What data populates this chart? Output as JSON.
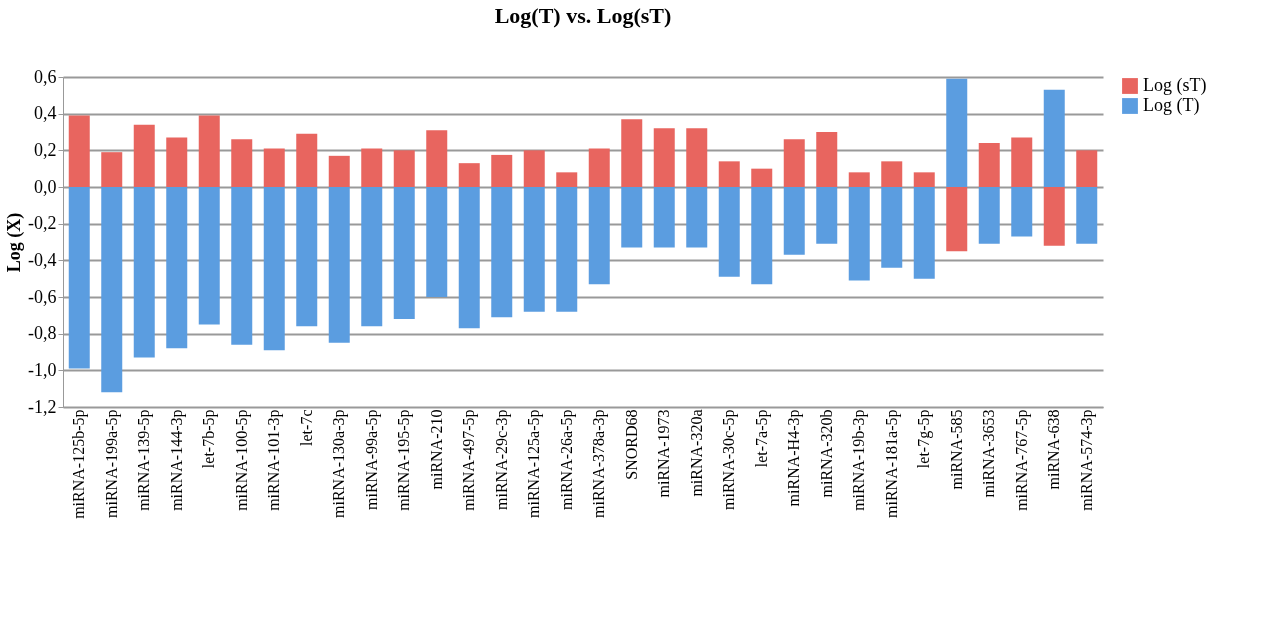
{
  "chart_data": {
    "type": "bar",
    "title": "Log(T) vs. Log(sT)",
    "ylabel": "Log (X)",
    "categories": [
      "miRNA-125b-5p",
      "miRNA-199a-5p",
      "miRNA-139-5p",
      "miRNA-144-3p",
      "let-7b-5p",
      "miRNA-100-5p",
      "miRNA-101-3p",
      "let-7c",
      "miRNA-130a-3p",
      "miRNA-99a-5p",
      "miRNA-195-5p",
      "miRNA-210",
      "miRNA-497-5p",
      "miRNA-29c-3p",
      "miRNA-125a-5p",
      "miRNA-26a-5p",
      "miRNA-378a-3p",
      "SNORD68",
      "miRNA-1973",
      "miRNA-320a",
      "miRNA-30c-5p",
      "let-7a-5p",
      "miRNA-H4-3p",
      "miRNA-320b",
      "miRNA-19b-3p",
      "miRNA-181a-5p",
      "let-7g-5p",
      "miRNA-585",
      "miRNA-3653",
      "miRNA-767-5p",
      "miRNA-638",
      "miRNA-574-3p"
    ],
    "series": [
      {
        "name": "Log (sT)",
        "color": "#e8655f",
        "values": [
          0.39,
          0.19,
          0.34,
          0.27,
          0.39,
          0.26,
          0.21,
          0.29,
          0.17,
          0.21,
          0.2,
          0.31,
          0.13,
          0.175,
          0.2,
          0.08,
          0.21,
          0.37,
          0.32,
          0.32,
          0.14,
          0.1,
          0.26,
          0.3,
          0.08,
          0.14,
          0.08,
          -0.35,
          0.24,
          0.27,
          -0.32,
          0.2
        ]
      },
      {
        "name": "Log (T)",
        "color": "#5b9de0",
        "values": [
          -0.99,
          -1.12,
          -0.93,
          -0.88,
          -0.75,
          -0.86,
          -0.89,
          -0.76,
          -0.85,
          -0.76,
          -0.72,
          -0.6,
          -0.77,
          -0.71,
          -0.68,
          -0.68,
          -0.53,
          -0.33,
          -0.33,
          -0.33,
          -0.49,
          -0.53,
          -0.37,
          -0.31,
          -0.51,
          -0.44,
          -0.5,
          0.59,
          -0.31,
          -0.27,
          0.53,
          -0.31
        ]
      }
    ],
    "stacked": true,
    "ylim": [
      -1.2,
      0.6
    ],
    "yticks": [
      {
        "value": 0.6,
        "label": "0,6"
      },
      {
        "value": 0.4,
        "label": "0,4"
      },
      {
        "value": 0.2,
        "label": "0,2"
      },
      {
        "value": 0.0,
        "label": "0,0"
      },
      {
        "value": -0.2,
        "label": "-0,2"
      },
      {
        "value": -0.4,
        "label": "-0,4"
      },
      {
        "value": -0.6,
        "label": "-0,6"
      },
      {
        "value": -0.8,
        "label": "-0,8"
      },
      {
        "value": -1.0,
        "label": "-1,0"
      },
      {
        "value": -1.2,
        "label": "-1,2"
      }
    ],
    "grid": "y",
    "legend": "right"
  }
}
